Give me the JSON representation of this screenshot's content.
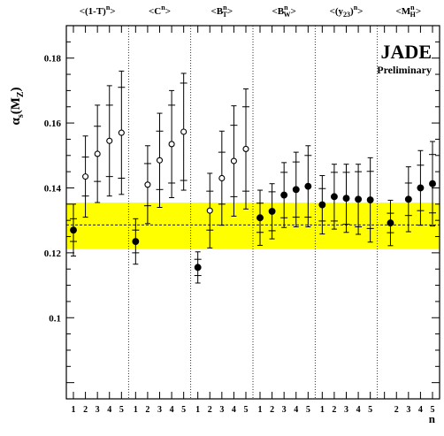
{
  "chart_data": {
    "type": "scatter",
    "title": "JADE",
    "subtitle": "Preliminary",
    "ylabel": "α",
    "ylabel_sub": "s",
    "ylabel_arg": "(M",
    "ylabel_arg_sub": "Z",
    "ylabel_close": ")",
    "xlabel": "n",
    "ylim": [
      0.075,
      0.19
    ],
    "y_ticks": [
      "0.1",
      "0.12",
      "0.14",
      "0.16",
      "0.18"
    ],
    "band": {
      "center": 0.1286,
      "low": 0.1212,
      "high": 0.1355,
      "color": "#ffff00"
    },
    "groups": [
      {
        "label_parts": [
          "<(1-T)",
          "n",
          ">"
        ],
        "n": [
          1,
          2,
          3,
          4,
          5
        ],
        "x_ticks": [
          "1",
          "2",
          "3",
          "4",
          "5"
        ],
        "values": [
          0.127,
          0.1435,
          0.1505,
          0.1545,
          0.157
        ],
        "err_inner": [
          0.0035,
          0.006,
          0.0085,
          0.011,
          0.014
        ],
        "err_outer": [
          0.008,
          0.0125,
          0.015,
          0.017,
          0.019
        ],
        "markers": [
          "filled",
          "open",
          "open",
          "open",
          "open"
        ]
      },
      {
        "label_parts": [
          "<C",
          "n",
          ">"
        ],
        "n": [
          1,
          2,
          3,
          4,
          5
        ],
        "x_ticks": [
          "1",
          "2",
          "3",
          "4",
          "5"
        ],
        "values": [
          0.1235,
          0.141,
          0.1485,
          0.1535,
          0.1573
        ],
        "err_inner": [
          0.0035,
          0.0065,
          0.009,
          0.012,
          0.015
        ],
        "err_outer": [
          0.007,
          0.012,
          0.0145,
          0.0165,
          0.018
        ],
        "markers": [
          "filled",
          "open",
          "open",
          "open",
          "open"
        ]
      },
      {
        "label_parts": [
          "<B",
          "n",
          "T",
          ">"
        ],
        "n": [
          1,
          2,
          3,
          4,
          5
        ],
        "x_ticks": [
          "1",
          "2",
          "3",
          "4",
          "5"
        ],
        "values": [
          0.1155,
          0.133,
          0.143,
          0.1483,
          0.152
        ],
        "err_inner": [
          0.0025,
          0.006,
          0.008,
          0.011,
          0.013
        ],
        "err_outer": [
          0.0048,
          0.0115,
          0.0145,
          0.017,
          0.0185
        ],
        "markers": [
          "filled",
          "open",
          "open",
          "open",
          "open"
        ]
      },
      {
        "label_parts": [
          "<B",
          "n",
          "W",
          ">"
        ],
        "n": [
          1,
          2,
          3,
          4,
          5
        ],
        "x_ticks": [
          "1",
          "2",
          "3",
          "4",
          "5"
        ],
        "values": [
          0.1308,
          0.1328,
          0.1378,
          0.1395,
          0.1405
        ],
        "err_inner": [
          0.0045,
          0.006,
          0.007,
          0.0085,
          0.0095
        ],
        "err_outer": [
          0.0085,
          0.0085,
          0.01,
          0.0115,
          0.0125
        ],
        "markers": [
          "filled",
          "filled",
          "filled",
          "filled",
          "filled"
        ]
      },
      {
        "label_parts": [
          "<(y",
          "23",
          ")",
          "n",
          ">"
        ],
        "n": [
          1,
          2,
          3,
          4,
          5
        ],
        "x_ticks": [
          "1",
          "2",
          "3",
          "4",
          "5"
        ],
        "values": [
          0.1348,
          0.1373,
          0.1368,
          0.1365,
          0.1363
        ],
        "err_inner": [
          0.005,
          0.0075,
          0.008,
          0.0085,
          0.0088
        ],
        "err_outer": [
          0.009,
          0.01,
          0.0105,
          0.0108,
          0.013
        ],
        "markers": [
          "filled",
          "filled",
          "filled",
          "filled",
          "filled"
        ]
      },
      {
        "label_parts": [
          "<M",
          "n",
          "H",
          ">"
        ],
        "n": [
          1,
          2,
          3,
          4,
          5
        ],
        "x_ticks": [
          "",
          "2",
          "3",
          "4",
          "5"
        ],
        "values": [
          0.1292,
          0.1365,
          0.14,
          0.1413
        ],
        "err_inner": [
          0.003,
          0.005,
          0.007,
          0.009
        ],
        "err_outer": [
          0.007,
          0.01,
          0.0115,
          0.013
        ],
        "markers": [
          "filled",
          "filled",
          "filled",
          "filled"
        ],
        "points_n": [
          1.5,
          3,
          4,
          5
        ]
      }
    ]
  }
}
